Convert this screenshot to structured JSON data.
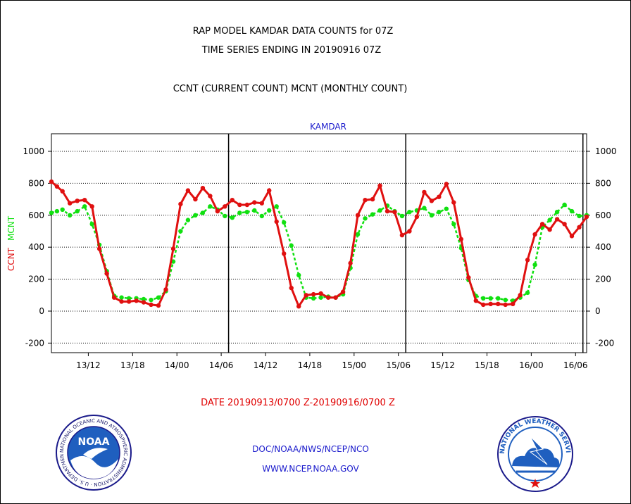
{
  "titles": {
    "line1": "RAP MODEL KAMDAR DATA COUNTS for 07Z",
    "line2": "TIME SERIES ENDING IN 20190916 07Z",
    "line3": "CCNT (CURRENT COUNT) MCNT (MONTHLY COUNT)"
  },
  "footer": {
    "date_range": "DATE 20190913/0700 Z-20190916/0700 Z",
    "agency": "DOC/NOAA/NWS/NCEP/NCO",
    "website": "WWW.NCEP.NOAA.GOV"
  },
  "colors": {
    "ccnt": "#e01010",
    "mcnt": "#10e010",
    "station": "#1a1acc",
    "noaa_blue": "#1f5fbf",
    "nws_blue": "#1f5fbf"
  },
  "logos": {
    "noaa_text": "NOAA",
    "noaa_ring": "NATIONAL OCEANIC AND ATMOSPHERIC ADMINISTRATION · U.S. DEPARTMENT OF COMMERCE ·",
    "nws_ring": "NATIONAL WEATHER SERVICE"
  },
  "chart_data": {
    "type": "line",
    "title": "KAMDAR",
    "ylabel_left": "CCNT",
    "ylabel_right": "MCNT",
    "ylim": [
      -260,
      1110
    ],
    "y_ticks": [
      -200,
      0,
      200,
      400,
      600,
      800,
      1000
    ],
    "x_tick_labels": [
      "13/12",
      "13/18",
      "14/00",
      "14/06",
      "14/12",
      "14/18",
      "15/00",
      "15/06",
      "15/12",
      "15/18",
      "16/00",
      "16/06"
    ],
    "x_tick_hours": [
      29,
      35,
      41,
      47,
      53,
      59,
      65,
      71,
      77,
      83,
      89,
      95
    ],
    "xlim_hours": [
      24,
      96.5
    ],
    "x_units": "hours since 20190912/00Z",
    "day_boundaries_hours": [
      48,
      72,
      96
    ],
    "grid": true,
    "x": [
      24.0,
      24.75,
      25.5,
      26.5,
      27.5,
      28.5,
      29.5,
      30.5,
      31.5,
      32.5,
      33.5,
      34.5,
      35.5,
      36.5,
      37.5,
      38.5,
      39.5,
      40.5,
      41.5,
      42.5,
      43.5,
      44.5,
      45.5,
      46.5,
      47.5,
      48.5,
      49.5,
      50.5,
      51.5,
      52.5,
      53.5,
      54.5,
      55.5,
      56.5,
      57.5,
      58.5,
      59.5,
      60.5,
      61.5,
      62.5,
      63.5,
      64.5,
      65.5,
      66.5,
      67.5,
      68.5,
      69.5,
      70.5,
      71.5,
      72.5,
      73.5,
      74.5,
      75.5,
      76.5,
      77.5,
      78.5,
      79.5,
      80.5,
      81.5,
      82.5,
      83.5,
      84.5,
      85.5,
      86.5,
      87.5,
      88.5,
      89.5,
      90.5,
      91.5,
      92.5,
      93.5,
      94.5,
      95.5,
      96.5
    ],
    "series": [
      {
        "name": "CCNT",
        "values": [
          810,
          780,
          750,
          675,
          690,
          695,
          655,
          390,
          235,
          85,
          60,
          60,
          65,
          55,
          40,
          35,
          135,
          390,
          670,
          755,
          700,
          770,
          720,
          625,
          655,
          695,
          665,
          665,
          680,
          675,
          755,
          560,
          360,
          145,
          30,
          100,
          105,
          110,
          85,
          85,
          120,
          300,
          600,
          695,
          700,
          785,
          625,
          620,
          475,
          500,
          590,
          745,
          690,
          715,
          795,
          680,
          450,
          210,
          65,
          40,
          45,
          45,
          40,
          45,
          100,
          320,
          480,
          545,
          510,
          575,
          545,
          470,
          525,
          590
        ]
      },
      {
        "name": "MCNT",
        "values": [
          615,
          625,
          635,
          600,
          625,
          655,
          545,
          415,
          250,
          95,
          85,
          80,
          80,
          75,
          70,
          85,
          125,
          310,
          500,
          570,
          600,
          615,
          655,
          635,
          595,
          585,
          615,
          620,
          630,
          595,
          630,
          655,
          555,
          410,
          225,
          85,
          80,
          85,
          90,
          85,
          105,
          270,
          480,
          580,
          605,
          630,
          660,
          625,
          595,
          620,
          630,
          645,
          600,
          620,
          640,
          545,
          395,
          195,
          95,
          80,
          80,
          80,
          70,
          65,
          85,
          115,
          290,
          525,
          570,
          620,
          665,
          625,
          595,
          600
        ]
      }
    ]
  }
}
